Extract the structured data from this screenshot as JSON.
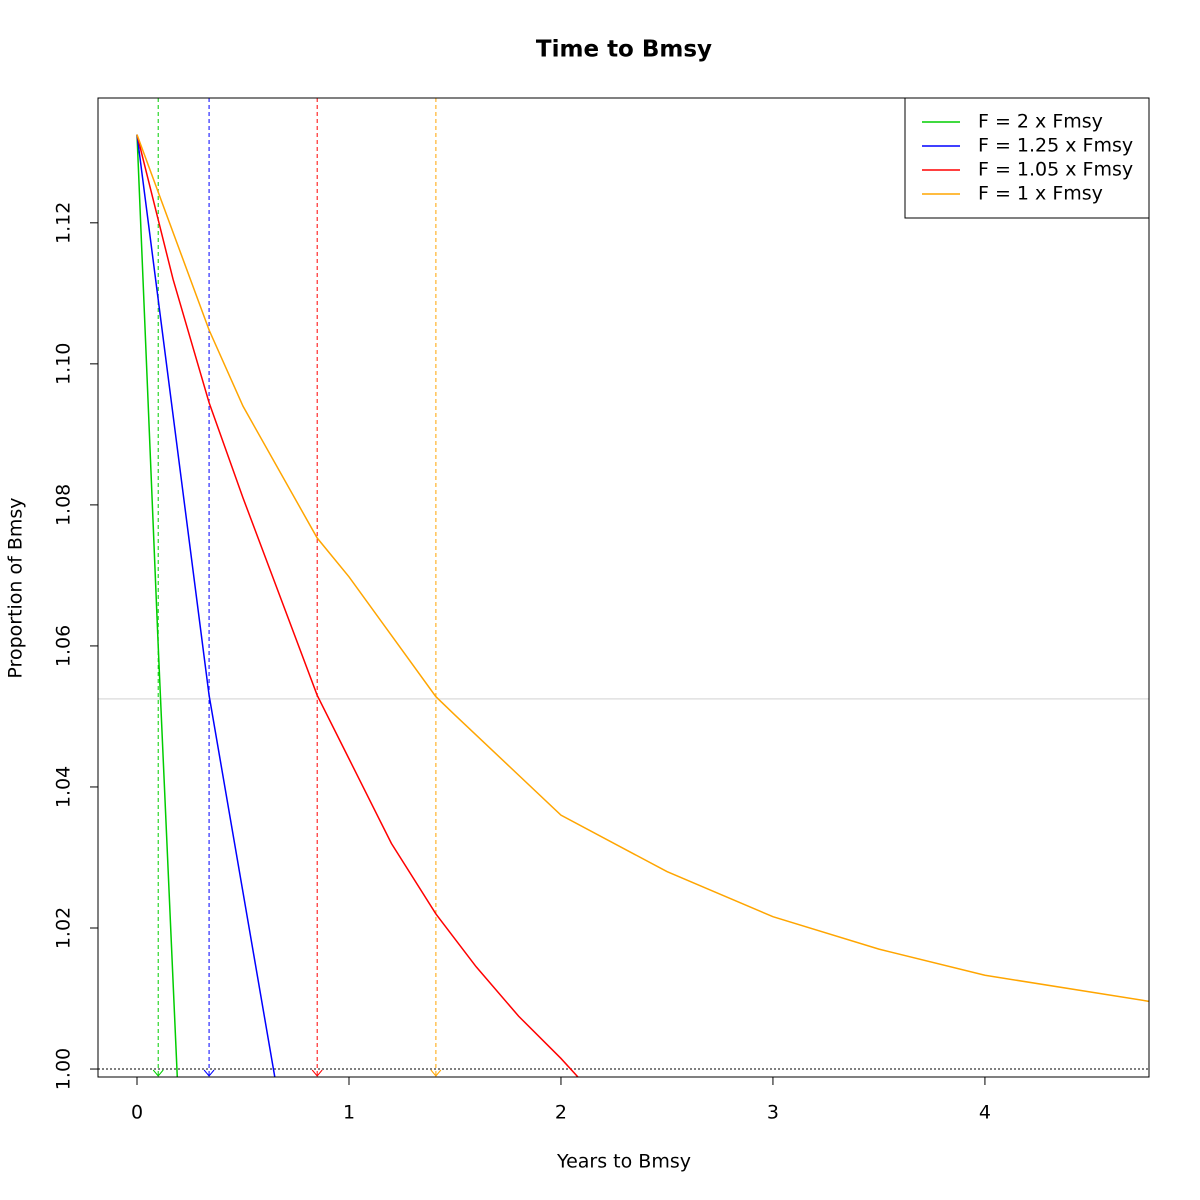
{
  "chart_data": {
    "type": "line",
    "title": "Time to Bmsy",
    "x_label": "Years to Bmsy",
    "y_label": "Proportion of Bmsy",
    "xlim": [
      -0.184,
      4.774
    ],
    "ylim": [
      0.99887,
      1.1377
    ],
    "xticks": [
      0,
      1,
      2,
      3,
      4
    ],
    "yticks": [
      {
        "value": 1,
        "label": "1.00"
      },
      1.02,
      1.04,
      1.06,
      1.08,
      {
        "value": 1.1,
        "label": "1.10"
      },
      1.12
    ],
    "series": [
      {
        "name": "F = 2 x Fmsy",
        "color": "#00cd00",
        "x": [
          0,
          0.1,
          0.19
        ],
        "values": [
          1.1325,
          1.06,
          0.99887
        ]
      },
      {
        "name": "F = 1.25 x Fmsy",
        "color": "#0000ff",
        "x": [
          0,
          0.34,
          0.65
        ],
        "values": [
          1.1325,
          1.053,
          0.99887
        ]
      },
      {
        "name": "F = 1.05 x Fmsy",
        "color": "#ff0000",
        "x": [
          0,
          0.17,
          0.34,
          0.5,
          0.85,
          1,
          1.2,
          1.41,
          1.6,
          1.8,
          2,
          2.08
        ],
        "values": [
          1.1325,
          1.112,
          1.0945,
          1.081,
          1.053,
          1.044,
          1.032,
          1.022,
          1.0145,
          1.0075,
          1.0015,
          0.99887
        ]
      },
      {
        "name": "F = 1 x Fmsy",
        "color": "#ffa500",
        "x": [
          0,
          0.34,
          0.5,
          0.85,
          1,
          1.41,
          1.5,
          2,
          2.5,
          3,
          3.5,
          4,
          4.774
        ],
        "values": [
          1.1325,
          1.1048,
          1.094,
          1.0753,
          1.0698,
          1.0528,
          1.0502,
          1.036,
          1.028,
          1.0216,
          1.017,
          1.0133,
          1.0096
        ]
      }
    ],
    "vlines": [
      {
        "x": 0.1,
        "color": "#00cd00"
      },
      {
        "x": 0.34,
        "color": "#0000ff"
      },
      {
        "x": 0.85,
        "color": "#ff0000"
      },
      {
        "x": 1.41,
        "color": "#ffa500"
      }
    ],
    "hlines": [
      {
        "y": 1.0525,
        "color": "#e0e0e0"
      },
      {
        "y": 1,
        "color": "#555555"
      }
    ],
    "legend_position": "top-right"
  }
}
